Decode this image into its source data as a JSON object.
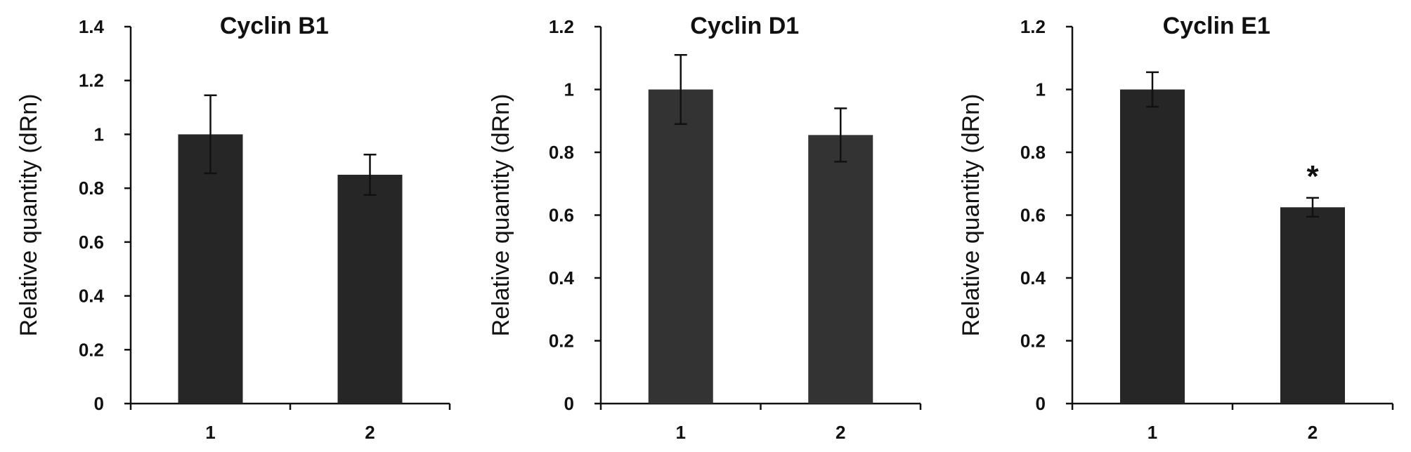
{
  "chart_data": [
    {
      "type": "bar",
      "title": "Cyclin B1",
      "ylabel": "Relative quantity (dRn)",
      "xlabel": "",
      "categories": [
        "1",
        "2"
      ],
      "values": [
        1.0,
        0.85
      ],
      "errors": [
        0.145,
        0.075
      ],
      "annotations": [
        "",
        ""
      ],
      "ylim": [
        0,
        1.4
      ],
      "yticks": [
        0,
        0.2,
        0.4,
        0.6,
        0.8,
        1,
        1.2,
        1.4
      ],
      "ytick_labels": [
        "0",
        "0.2",
        "0.4",
        "0.6",
        "0.8",
        "1",
        "1.2",
        "1.4"
      ],
      "bar_color": "#262626",
      "grid": false
    },
    {
      "type": "bar",
      "title": "Cyclin D1",
      "ylabel": "Relative quantity (dRn)",
      "xlabel": "",
      "categories": [
        "1",
        "2"
      ],
      "values": [
        1.0,
        0.855
      ],
      "errors": [
        0.11,
        0.085
      ],
      "annotations": [
        "",
        ""
      ],
      "ylim": [
        0,
        1.2
      ],
      "yticks": [
        0,
        0.2,
        0.4,
        0.6,
        0.8,
        1,
        1.2
      ],
      "ytick_labels": [
        "0",
        "0.2",
        "0.4",
        "0.6",
        "0.8",
        "1",
        "1.2"
      ],
      "bar_color": "#333333",
      "grid": false
    },
    {
      "type": "bar",
      "title": "Cyclin E1",
      "ylabel": "Relative quantity (dRn)",
      "xlabel": "",
      "categories": [
        "1",
        "2"
      ],
      "values": [
        1.0,
        0.625
      ],
      "errors": [
        0.055,
        0.03
      ],
      "annotations": [
        "",
        "*"
      ],
      "ylim": [
        0,
        1.2
      ],
      "yticks": [
        0,
        0.2,
        0.4,
        0.6,
        0.8,
        1,
        1.2
      ],
      "ytick_labels": [
        "0",
        "0.2",
        "0.4",
        "0.6",
        "0.8",
        "1",
        "1.2"
      ],
      "bar_color": "#262626",
      "grid": false
    }
  ]
}
